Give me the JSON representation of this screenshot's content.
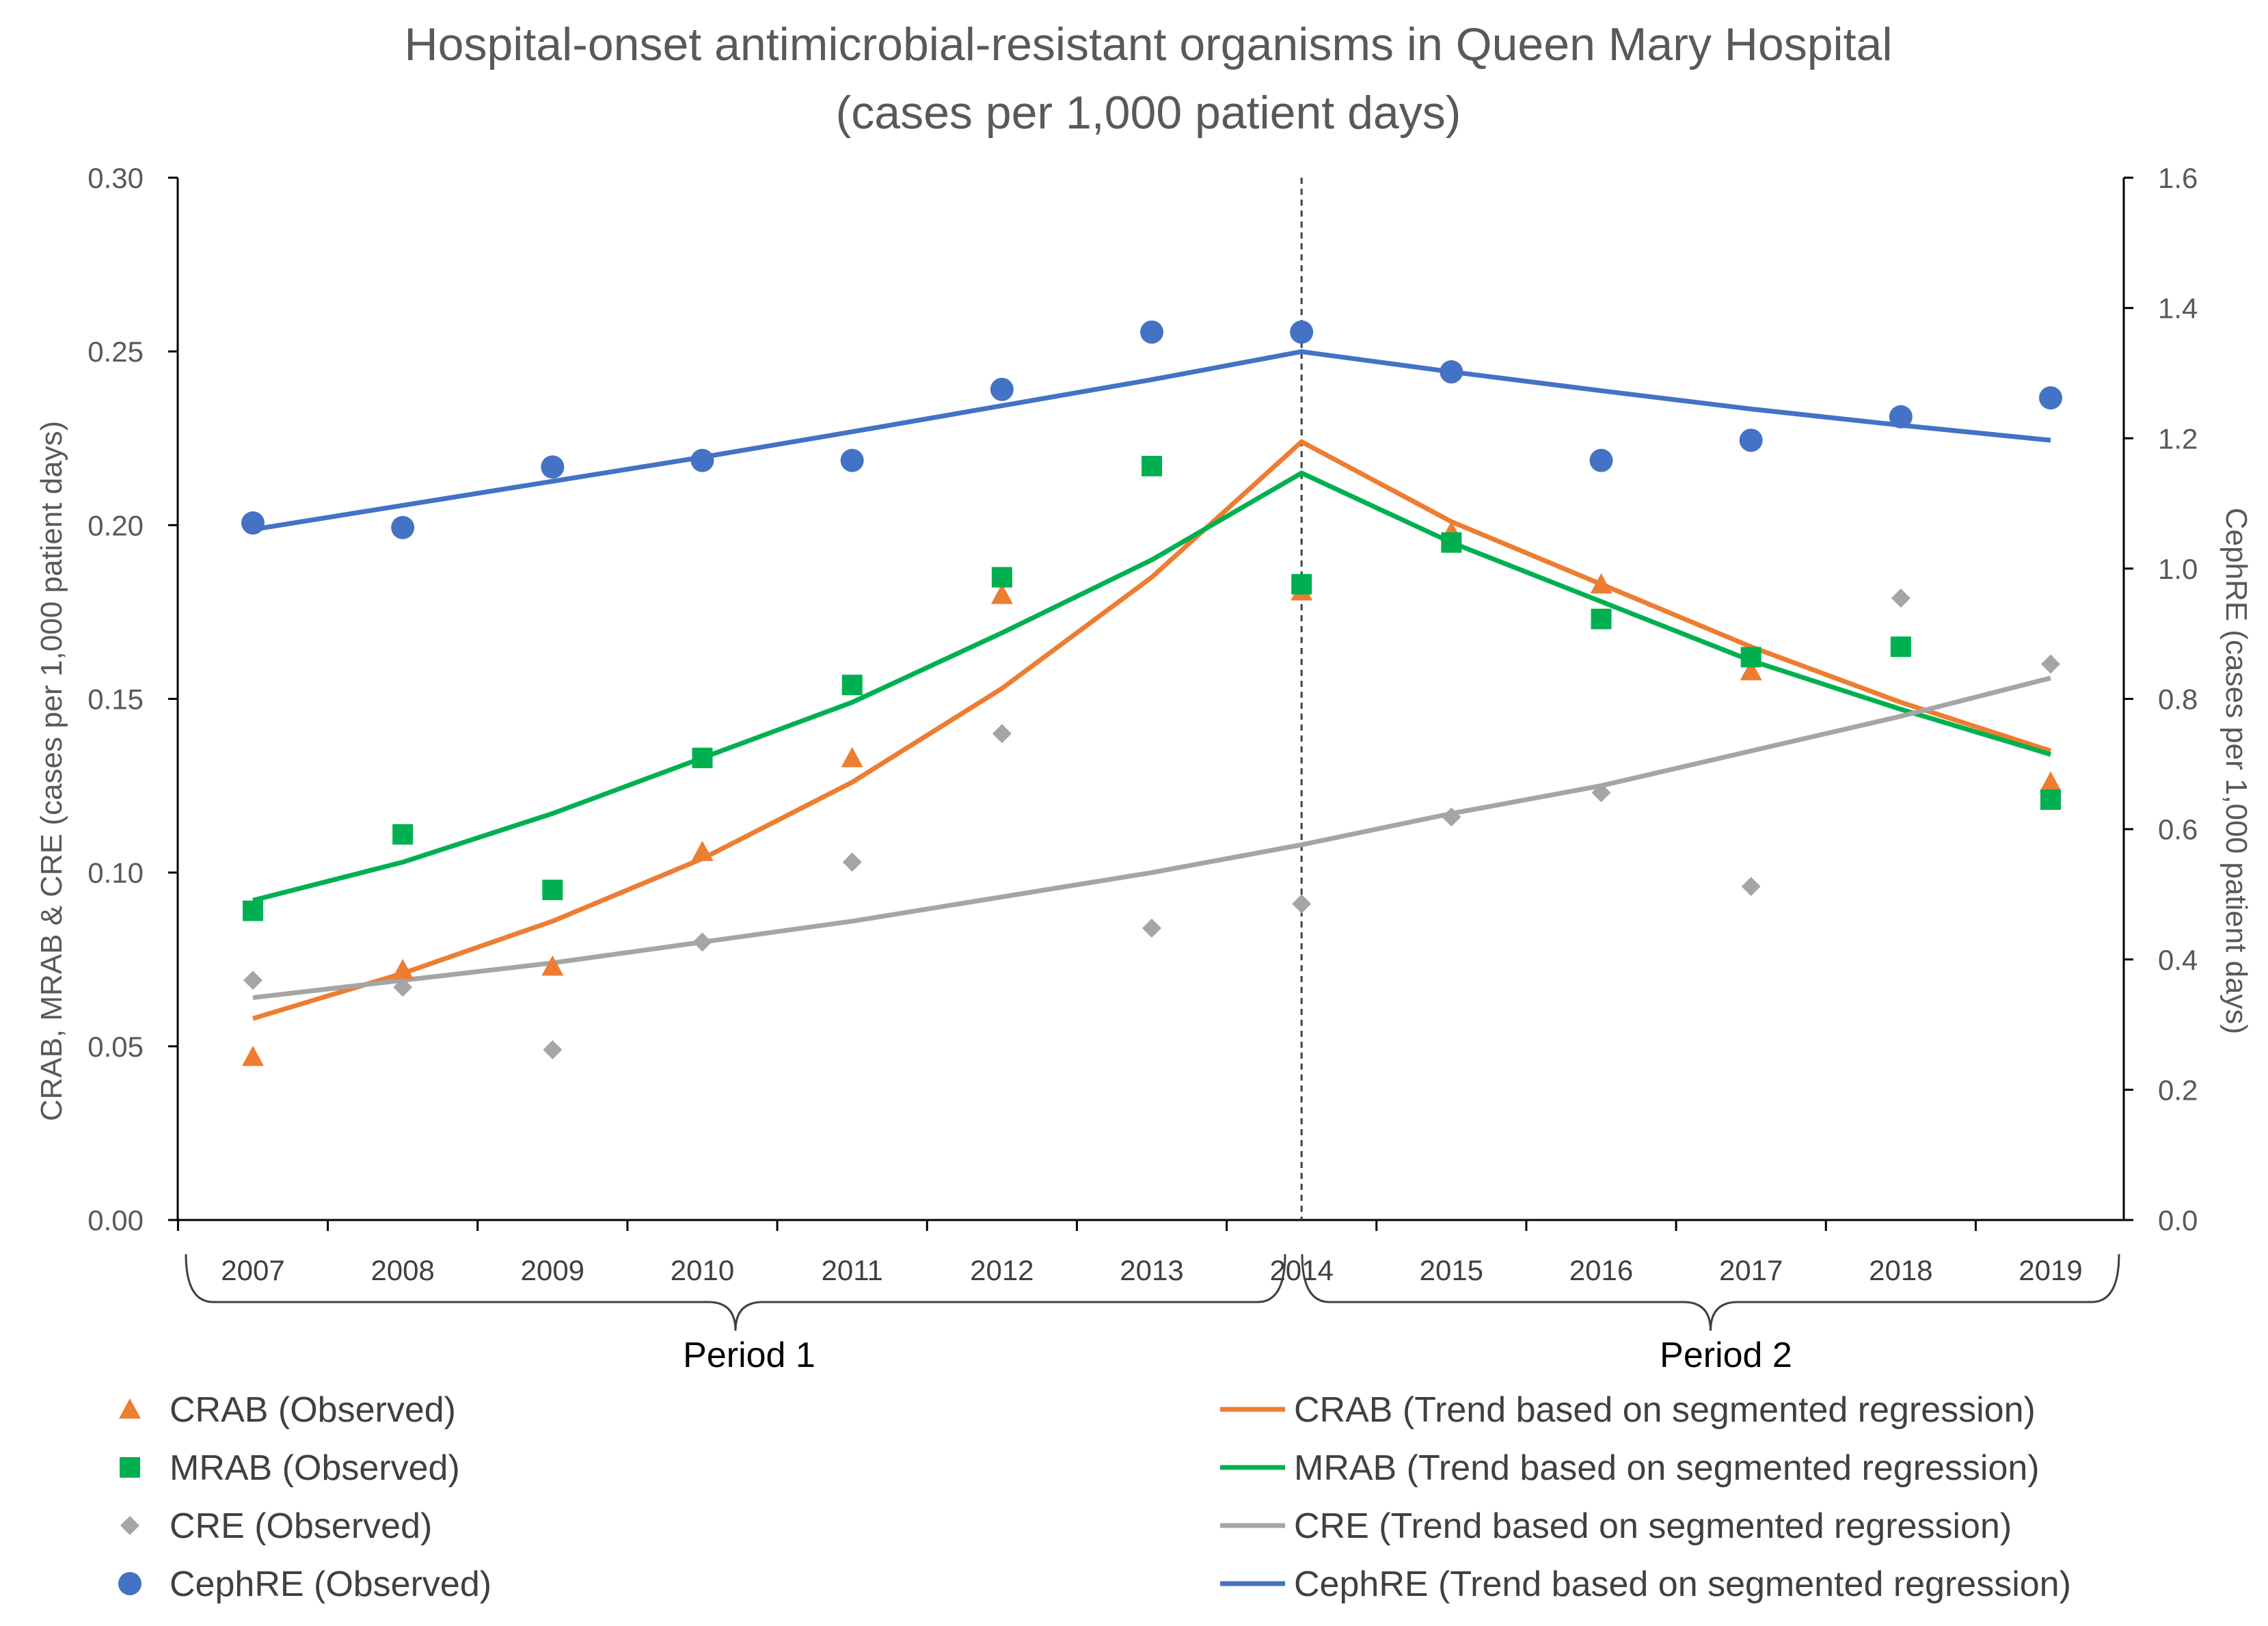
{
  "chart_data": {
    "type": "scatter",
    "title_line1": "Hospital-onset antimicrobial-resistant organisms in Queen Mary Hospital",
    "title_line2": "(cases per 1,000 patient days)",
    "ylabel_left": "CRAB, MRAB & CRE (cases per 1,000 patient days)",
    "ylabel_right": "CephRE (cases per 1,000 patient days)",
    "categories": [
      "2007",
      "2008",
      "2009",
      "2010",
      "2011",
      "2012",
      "2013",
      "2014",
      "2015",
      "2016",
      "2017",
      "2018",
      "2019"
    ],
    "ylim_left": [
      0,
      0.3
    ],
    "ylim_right": [
      0,
      1.6
    ],
    "yticks_left": [
      "0.00",
      "0.05",
      "0.10",
      "0.15",
      "0.20",
      "0.25",
      "0.30"
    ],
    "yticks_right": [
      "0.0",
      "0.2",
      "0.4",
      "0.6",
      "0.8",
      "1.0",
      "1.2",
      "1.4",
      "1.6"
    ],
    "breakpoint": "2014",
    "period_labels": [
      "Period 1",
      "Period 2"
    ],
    "colors": {
      "crab": "#ED7D31",
      "mrab": "#00B050",
      "cre": "#A5A5A5",
      "cephre": "#4472C4"
    },
    "observed": [
      {
        "key": "crab",
        "name": "CRAB (Observed)",
        "axis": "left",
        "marker": "triangle",
        "values": [
          0.047,
          0.072,
          0.073,
          0.106,
          0.133,
          0.18,
          null,
          0.181,
          0.198,
          0.183,
          0.158,
          null,
          0.126
        ]
      },
      {
        "key": "mrab",
        "name": "MRAB (Observed)",
        "axis": "left",
        "marker": "square",
        "values": [
          0.089,
          0.111,
          0.095,
          0.133,
          0.154,
          0.185,
          0.217,
          0.183,
          0.195,
          0.173,
          0.162,
          0.165,
          0.121
        ]
      },
      {
        "key": "cre",
        "name": "CRE (Observed)",
        "axis": "left",
        "marker": "diamond",
        "values": [
          0.069,
          0.067,
          0.049,
          0.08,
          0.103,
          0.14,
          0.084,
          0.091,
          0.116,
          0.123,
          0.096,
          0.179,
          0.16
        ]
      },
      {
        "key": "cephre",
        "name": "CephRE (Observed)",
        "axis": "right",
        "marker": "circle",
        "values": [
          1.07,
          1.063,
          1.156,
          1.166,
          1.166,
          1.275,
          1.363,
          1.363,
          1.302,
          1.166,
          1.197,
          1.233,
          1.262
        ]
      }
    ],
    "trends": [
      {
        "key": "crab",
        "name": "CRAB (Trend based on segmented regression)",
        "axis": "left",
        "values": [
          0.058,
          0.071,
          0.086,
          0.104,
          0.126,
          0.153,
          0.185,
          0.224,
          0.201,
          0.183,
          0.165,
          0.149,
          0.135
        ]
      },
      {
        "key": "mrab",
        "name": "MRAB  (Trend based on segmented regression)",
        "axis": "left",
        "values": [
          0.092,
          0.103,
          0.117,
          0.133,
          0.149,
          0.169,
          0.19,
          0.215,
          0.195,
          0.178,
          0.161,
          0.147,
          0.134
        ]
      },
      {
        "key": "cre",
        "name": "CRE (Trend based on segmented regression)",
        "axis": "left",
        "values": [
          0.064,
          0.069,
          0.074,
          0.08,
          0.086,
          0.093,
          0.1,
          0.108,
          0.117,
          0.125,
          0.135,
          0.145,
          0.156
        ]
      },
      {
        "key": "cephre",
        "name": "CephRE (Trend based on segmented regression)",
        "axis": "right",
        "values": [
          1.06,
          1.097,
          1.134,
          1.171,
          1.21,
          1.25,
          1.29,
          1.333,
          1.302,
          1.273,
          1.245,
          1.22,
          1.197
        ]
      }
    ]
  }
}
